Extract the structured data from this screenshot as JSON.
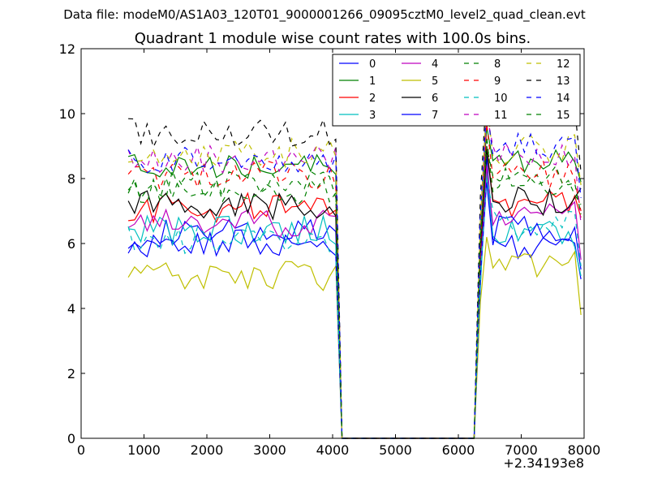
{
  "suptitle": "Data file: modeM0/AS1A03_120T01_9000001266_09095cztM0_level2_quad_clean.evt",
  "chart_data": {
    "type": "line",
    "title": "Quadrant 1 module wise count rates with 100.0s bins.",
    "xlabel": "",
    "ylabel": "",
    "xlim": [
      0,
      8000
    ],
    "ylim": [
      0,
      12
    ],
    "x_offset_label": "+2.34193e8",
    "xticks": [
      0,
      1000,
      2000,
      3000,
      4000,
      5000,
      6000,
      7000,
      8000
    ],
    "yticks": [
      0,
      2,
      4,
      6,
      8,
      10,
      12
    ],
    "legend_position": "top-right",
    "legend_columns": 4,
    "x_segment1_start": 750,
    "x_step": 100,
    "x_drop_end": 4150,
    "x_gap_end": 6250,
    "x_segment2_start": 6450,
    "x_end": 7950,
    "series": [
      {
        "name": "0",
        "color": "#0000ff",
        "dash": false,
        "level1": 6.3,
        "level2": 5.9,
        "peak": 8.7,
        "end": 4.9
      },
      {
        "name": "1",
        "color": "#008000",
        "dash": false,
        "level1": 8.3,
        "level2": 8.5,
        "peak": 9.6,
        "end": 7.9
      },
      {
        "name": "2",
        "color": "#ff0000",
        "dash": false,
        "level1": 7.1,
        "level2": 7.2,
        "peak": 9.0,
        "end": 6.8
      },
      {
        "name": "3",
        "color": "#00bfbf",
        "dash": false,
        "level1": 6.4,
        "level2": 6.3,
        "peak": 8.2,
        "end": 5.0
      },
      {
        "name": "4",
        "color": "#bf00bf",
        "dash": false,
        "level1": 6.6,
        "level2": 6.9,
        "peak": 8.4,
        "end": 5.5
      },
      {
        "name": "5",
        "color": "#bfbf00",
        "dash": false,
        "level1": 5.0,
        "level2": 5.4,
        "peak": 6.2,
        "end": 3.8
      },
      {
        "name": "6",
        "color": "#000000",
        "dash": false,
        "level1": 7.2,
        "level2": 7.3,
        "peak": 8.9,
        "end": 7.7
      },
      {
        "name": "7",
        "color": "#0000ff",
        "dash": false,
        "level1": 6.0,
        "level2": 6.4,
        "peak": 7.9,
        "end": 5.2
      },
      {
        "name": "8",
        "color": "#008000",
        "dash": true,
        "level1": 7.8,
        "level2": 7.9,
        "peak": 9.3,
        "end": 7.2
      },
      {
        "name": "9",
        "color": "#ff0000",
        "dash": true,
        "level1": 8.1,
        "level2": 8.1,
        "peak": 9.7,
        "end": 7.0
      },
      {
        "name": "10",
        "color": "#00bfbf",
        "dash": true,
        "level1": 6.1,
        "level2": 6.6,
        "peak": 8.0,
        "end": 5.3
      },
      {
        "name": "11",
        "color": "#bf00bf",
        "dash": true,
        "level1": 8.6,
        "level2": 8.8,
        "peak": 10.0,
        "end": 6.6
      },
      {
        "name": "12",
        "color": "#bfbf00",
        "dash": true,
        "level1": 8.8,
        "level2": 8.9,
        "peak": 10.4,
        "end": 7.8
      },
      {
        "name": "13",
        "color": "#000000",
        "dash": true,
        "level1": 9.4,
        "level2": 10.2,
        "peak": 10.8,
        "end": 8.2
      },
      {
        "name": "14",
        "color": "#0000ff",
        "dash": true,
        "level1": 8.6,
        "level2": 9.0,
        "peak": 10.2,
        "end": 7.4
      },
      {
        "name": "15",
        "color": "#008000",
        "dash": true,
        "level1": 7.6,
        "level2": 8.0,
        "peak": 9.0,
        "end": 6.9
      }
    ]
  }
}
